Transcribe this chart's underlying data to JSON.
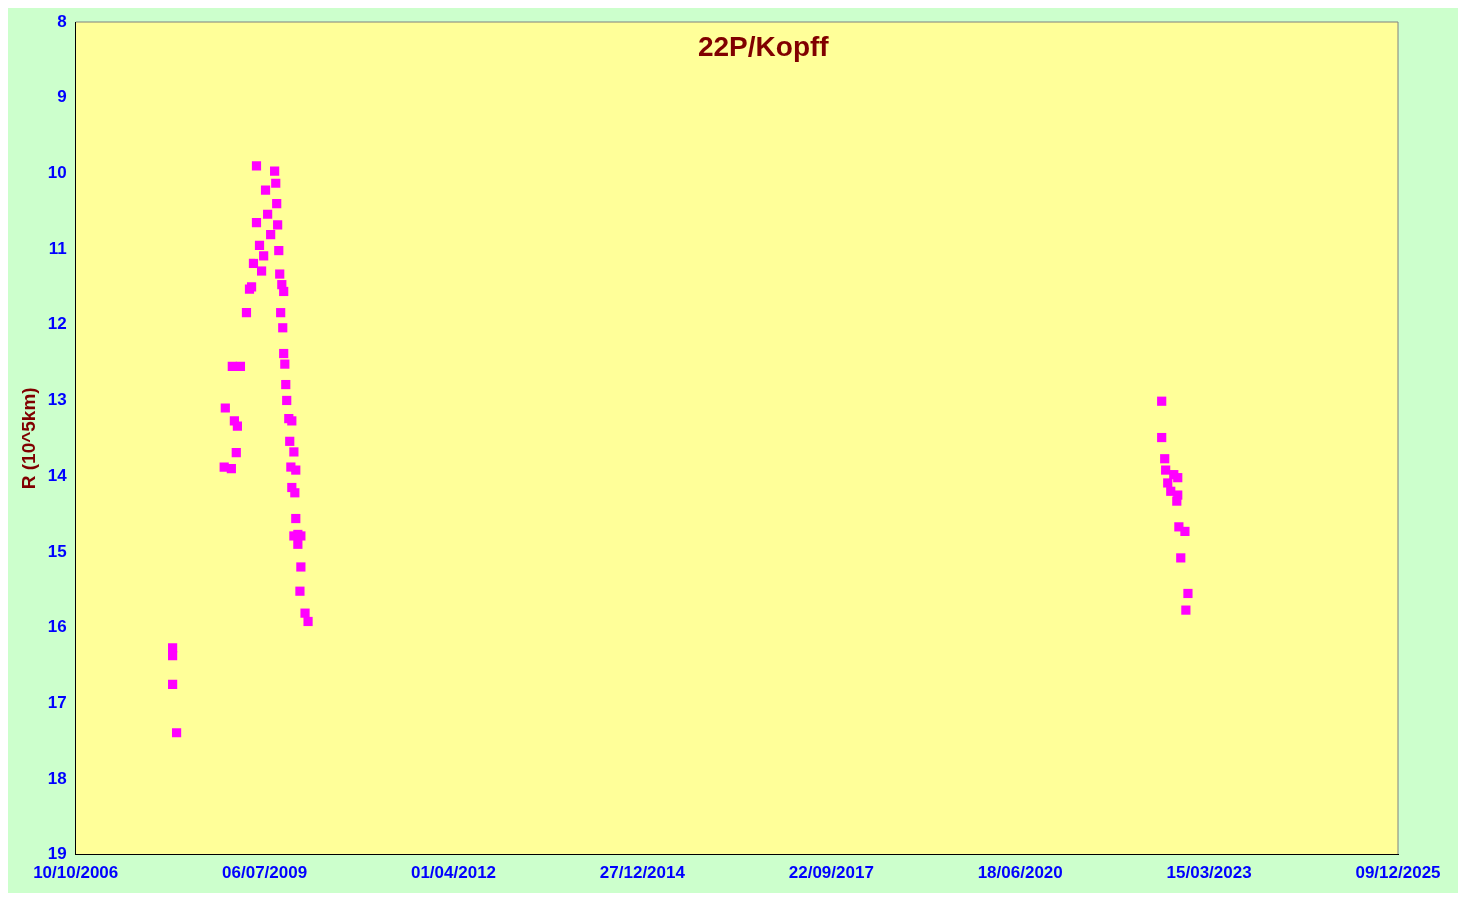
{
  "chart_data": {
    "type": "scatter",
    "title": "22P/Kopff",
    "ylabel": "R (10^5km)",
    "marker": "square",
    "grid": false,
    "legend": false,
    "xlim": [
      "2006-10-10",
      "2025-12-09"
    ],
    "xticks": [
      {
        "value": "2006-10-10",
        "label": "10/10/2006"
      },
      {
        "value": "2009-07-06",
        "label": "06/07/2009"
      },
      {
        "value": "2012-04-01",
        "label": "01/04/2012"
      },
      {
        "value": "2014-12-27",
        "label": "27/12/2014"
      },
      {
        "value": "2017-09-22",
        "label": "22/09/2017"
      },
      {
        "value": "2020-06-18",
        "label": "18/06/2020"
      },
      {
        "value": "2023-03-15",
        "label": "15/03/2023"
      },
      {
        "value": "2025-12-09",
        "label": "09/12/2025"
      }
    ],
    "ylim": [
      19,
      8
    ],
    "yticks": [
      8,
      9,
      10,
      11,
      12,
      13,
      14,
      15,
      16,
      17,
      18,
      19
    ],
    "series": [
      {
        "color": "#ff00ff",
        "x": [
          "2008-03-06",
          "2008-03-06",
          "2008-03-06",
          "2008-03-27",
          "2008-12-04",
          "2008-12-10",
          "2009-01-11",
          "2009-01-16",
          "2009-01-27",
          "2009-02-06",
          "2009-02-12",
          "2009-02-28",
          "2009-04-01",
          "2009-04-17",
          "2009-04-28",
          "2009-05-08",
          "2009-05-24",
          "2009-05-24",
          "2009-06-09",
          "2009-06-20",
          "2009-07-01",
          "2009-07-11",
          "2009-07-22",
          "2009-08-07",
          "2009-08-28",
          "2009-09-03",
          "2009-09-08",
          "2009-09-13",
          "2009-09-19",
          "2009-09-24",
          "2009-10-05",
          "2009-10-15",
          "2009-09-29",
          "2009-10-10",
          "2009-10-15",
          "2009-10-21",
          "2009-10-26",
          "2009-10-31",
          "2009-11-11",
          "2009-11-27",
          "2009-11-16",
          "2009-11-22",
          "2009-12-08",
          "2009-12-18",
          "2009-11-27",
          "2009-12-13",
          "2009-12-18",
          "2009-12-29",
          "2009-12-08",
          "2010-01-14",
          "2009-12-29",
          "2010-01-14",
          "2010-01-09",
          "2010-02-05",
          "2010-02-21",
          "2022-07-07",
          "2022-07-07",
          "2022-07-23",
          "2022-07-28",
          "2022-08-08",
          "2022-08-24",
          "2022-09-09",
          "2022-09-30",
          "2022-09-25",
          "2022-09-30",
          "2022-10-06",
          "2022-11-07",
          "2022-10-16",
          "2022-11-23",
          "2022-11-12"
        ],
        "values": [
          16.27,
          16.37,
          16.75,
          17.39,
          13.88,
          13.1,
          13.9,
          12.55,
          13.27,
          13.69,
          13.34,
          12.55,
          11.84,
          11.53,
          11.5,
          11.19,
          9.9,
          10.65,
          10.95,
          11.29,
          11.09,
          10.22,
          10.54,
          10.81,
          9.97,
          10.13,
          10.4,
          10.68,
          11.02,
          11.33,
          11.47,
          11.56,
          11.84,
          12.04,
          12.38,
          12.52,
          12.79,
          13.0,
          13.24,
          13.27,
          13.54,
          13.88,
          13.68,
          13.92,
          14.15,
          14.22,
          14.56,
          14.77,
          14.79,
          14.79,
          14.9,
          15.2,
          15.52,
          15.81,
          15.92,
          13.01,
          13.49,
          13.77,
          13.92,
          14.09,
          14.2,
          13.98,
          14.02,
          14.33,
          14.25,
          14.67,
          14.73,
          15.08,
          15.55,
          15.77
        ]
      }
    ]
  }
}
